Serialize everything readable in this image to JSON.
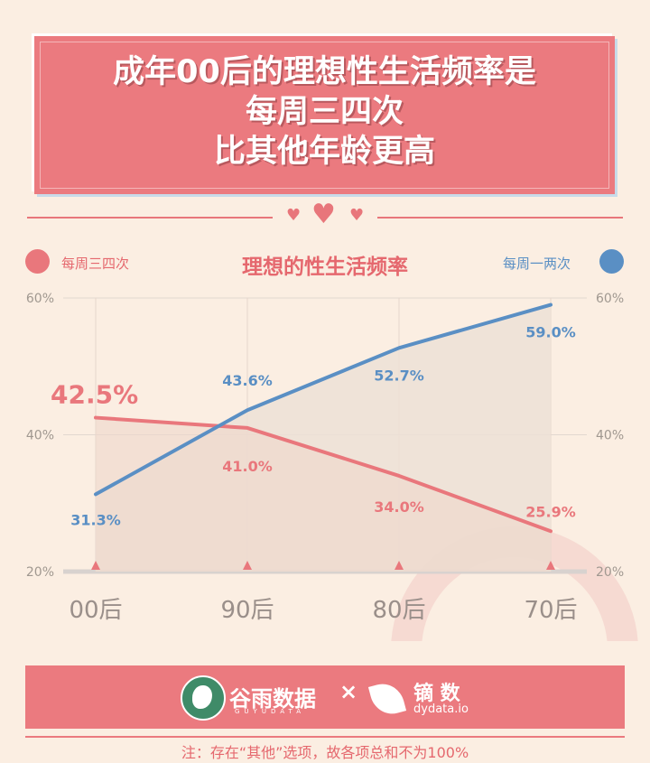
{
  "title": {
    "line1": "成年00后的理想性生活频率是",
    "line2": "每周三四次",
    "line3": "比其他年龄更高"
  },
  "chart_data": {
    "type": "line",
    "title": "理想的性生活频率",
    "categories": [
      "00后",
      "90后",
      "80后",
      "70后"
    ],
    "series": [
      {
        "name": "每周三四次",
        "color": "#e9777c",
        "values": [
          42.5,
          41.0,
          34.0,
          25.9
        ],
        "labels": [
          "42.5%",
          "41.0%",
          "34.0%",
          "25.9%"
        ]
      },
      {
        "name": "每周一两次",
        "color": "#5a8fc4",
        "values": [
          31.3,
          43.6,
          52.7,
          59.0
        ],
        "labels": [
          "31.3%",
          "43.6%",
          "52.7%",
          "59.0%"
        ]
      }
    ],
    "y_ticks": [
      "60%",
      "40%",
      "20%"
    ],
    "ylim": [
      20,
      60
    ],
    "grid": true,
    "legend_placement": "top (left and right)"
  },
  "legend": {
    "left_label": "每周三四次",
    "right_label": "每周一两次"
  },
  "footer": {
    "logo1_text": "谷雨数据",
    "logo1_sub": "GUYUDATA",
    "times": "×",
    "logo2_text": "镝 数",
    "logo2_sub": "dydata.io",
    "note": "注：存在“其他”选项，故各项总和不为100%"
  },
  "colors": {
    "background": "#fbeee2",
    "accent": "#eb7a7f",
    "blue": "#5a8fc4"
  }
}
